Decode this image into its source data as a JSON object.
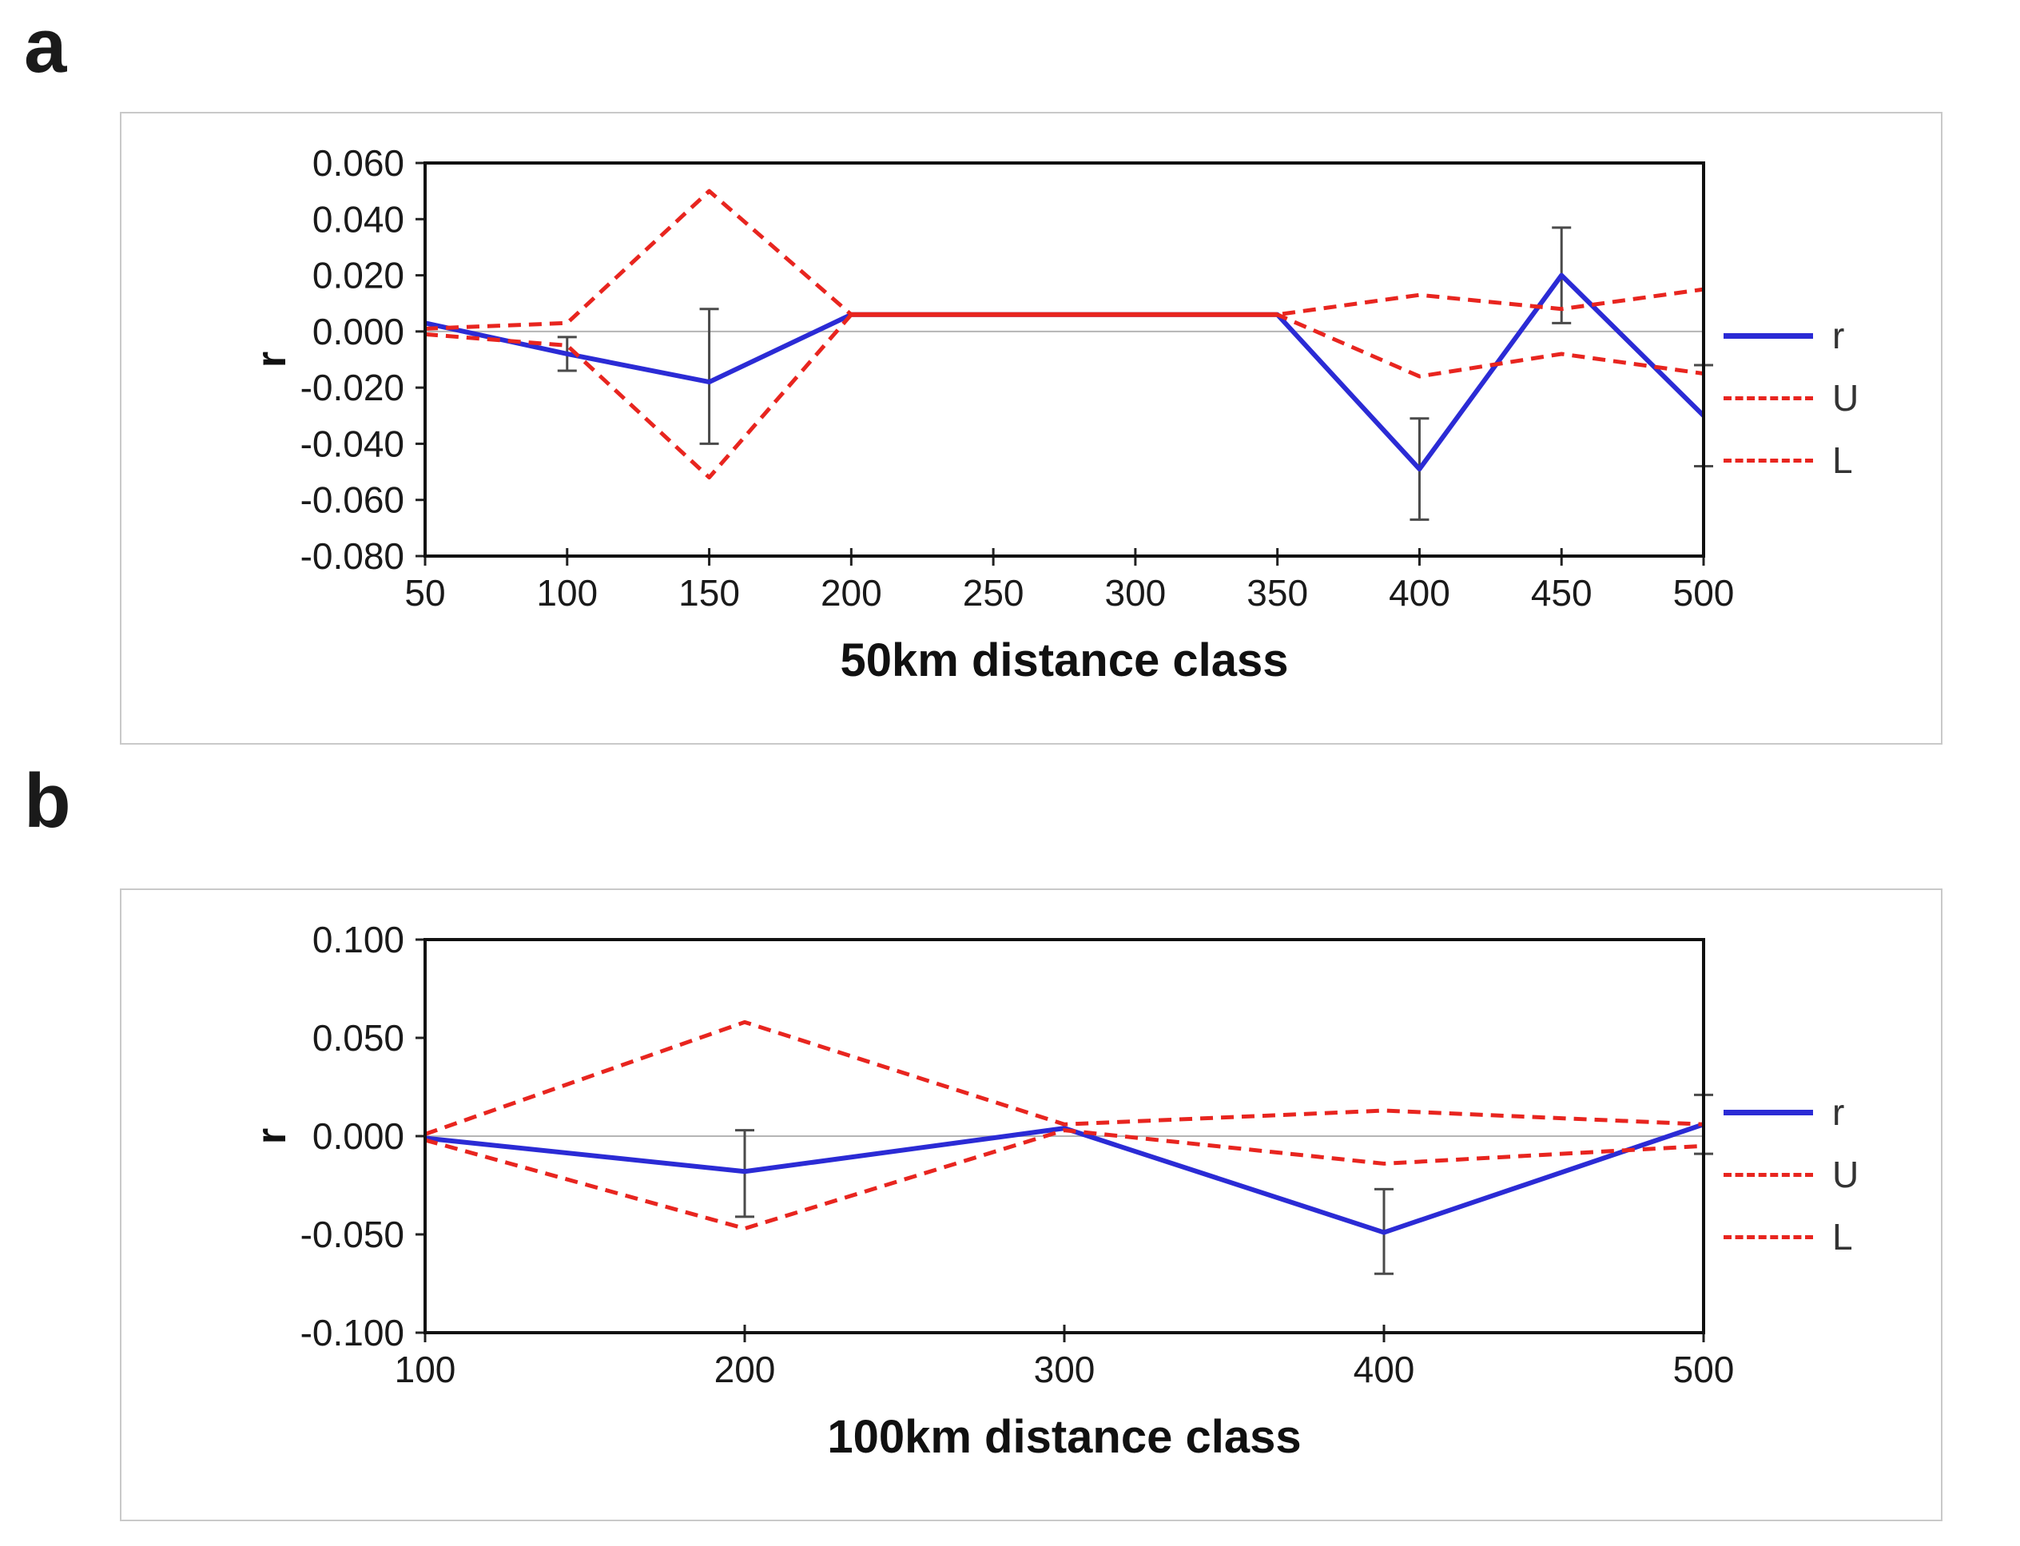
{
  "page": {
    "background": "#ffffff",
    "accent_blue": "#2b2bd5",
    "accent_red": "#e8251f",
    "error_bar_color": "#4a4a4a"
  },
  "panels": [
    {
      "label": "a",
      "legend": [
        {
          "name": "r",
          "style": "solid",
          "color": "#2b2bd5"
        },
        {
          "name": "U",
          "style": "dashed",
          "color": "#e8251f"
        },
        {
          "name": "L",
          "style": "dashed",
          "color": "#e8251f"
        }
      ]
    },
    {
      "label": "b",
      "legend": [
        {
          "name": "r",
          "style": "solid",
          "color": "#2b2bd5"
        },
        {
          "name": "U",
          "style": "dashed",
          "color": "#e8251f"
        },
        {
          "name": "L",
          "style": "dashed",
          "color": "#e8251f"
        }
      ]
    }
  ],
  "chart_data": [
    {
      "type": "line",
      "panel": "a",
      "title": "",
      "xlabel": "50km distance class",
      "ylabel": "r",
      "x": [
        50,
        100,
        150,
        200,
        250,
        300,
        350,
        400,
        450,
        500
      ],
      "xticks": [
        50,
        100,
        150,
        200,
        250,
        300,
        350,
        400,
        450,
        500
      ],
      "ylim": [
        -0.08,
        0.06
      ],
      "yticks": [
        0.06,
        0.04,
        0.02,
        0.0,
        -0.02,
        -0.04,
        -0.06,
        -0.08
      ],
      "ytick_labels": [
        "0.060",
        "0.040",
        "0.020",
        "0.000",
        "-0.020",
        "-0.040",
        "-0.060",
        "-0.080"
      ],
      "zero_line": true,
      "grid": false,
      "legend_position": "right",
      "series": [
        {
          "name": "r",
          "color": "#2b2bd5",
          "dash": null,
          "width": 6,
          "values": [
            0.003,
            -0.008,
            -0.018,
            0.006,
            0.006,
            0.006,
            0.006,
            -0.049,
            0.02,
            -0.03
          ]
        },
        {
          "name": "U",
          "color": "#e8251f",
          "dash": "16 10",
          "width": 5,
          "values": [
            0.001,
            0.003,
            0.05,
            0.006,
            0.006,
            0.006,
            0.006,
            0.013,
            0.008,
            0.015
          ]
        },
        {
          "name": "L",
          "color": "#e8251f",
          "dash": "16 10",
          "width": 5,
          "values": [
            -0.001,
            -0.005,
            -0.052,
            0.006,
            0.006,
            0.006,
            0.006,
            -0.016,
            -0.008,
            -0.015
          ]
        }
      ],
      "overlay_segments": [
        {
          "color": "#e8251f",
          "width": 6,
          "points": [
            [
              200,
              0.006
            ],
            [
              350,
              0.006
            ]
          ]
        }
      ],
      "error_bars": [
        {
          "x": 100,
          "lo": -0.014,
          "hi": -0.002
        },
        {
          "x": 150,
          "lo": -0.04,
          "hi": 0.008
        },
        {
          "x": 400,
          "lo": -0.067,
          "hi": -0.031
        },
        {
          "x": 450,
          "lo": 0.003,
          "hi": 0.037
        },
        {
          "x": 500,
          "lo": -0.048,
          "hi": -0.012
        }
      ]
    },
    {
      "type": "line",
      "panel": "b",
      "title": "",
      "xlabel": "100km distance class",
      "ylabel": "r",
      "x": [
        100,
        200,
        300,
        400,
        500
      ],
      "xticks": [
        100,
        200,
        300,
        400,
        500
      ],
      "ylim": [
        -0.1,
        0.1
      ],
      "yticks": [
        0.1,
        0.05,
        0.0,
        -0.05,
        -0.1
      ],
      "ytick_labels": [
        "0.100",
        "0.050",
        "0.000",
        "-0.050",
        "-0.100"
      ],
      "zero_line": true,
      "grid": false,
      "legend_position": "right",
      "series": [
        {
          "name": "r",
          "color": "#2b2bd5",
          "dash": null,
          "width": 6,
          "values": [
            -0.001,
            -0.018,
            0.004,
            -0.049,
            0.006
          ]
        },
        {
          "name": "U",
          "color": "#e8251f",
          "dash": "16 10",
          "width": 5,
          "values": [
            0.001,
            0.058,
            0.006,
            0.013,
            0.006
          ]
        },
        {
          "name": "L",
          "color": "#e8251f",
          "dash": "16 10",
          "width": 5,
          "values": [
            -0.002,
            -0.047,
            0.003,
            -0.014,
            -0.005
          ]
        }
      ],
      "overlay_segments": [],
      "error_bars": [
        {
          "x": 200,
          "lo": -0.041,
          "hi": 0.003
        },
        {
          "x": 400,
          "lo": -0.07,
          "hi": -0.027
        },
        {
          "x": 500,
          "lo": -0.009,
          "hi": 0.021
        }
      ]
    }
  ]
}
